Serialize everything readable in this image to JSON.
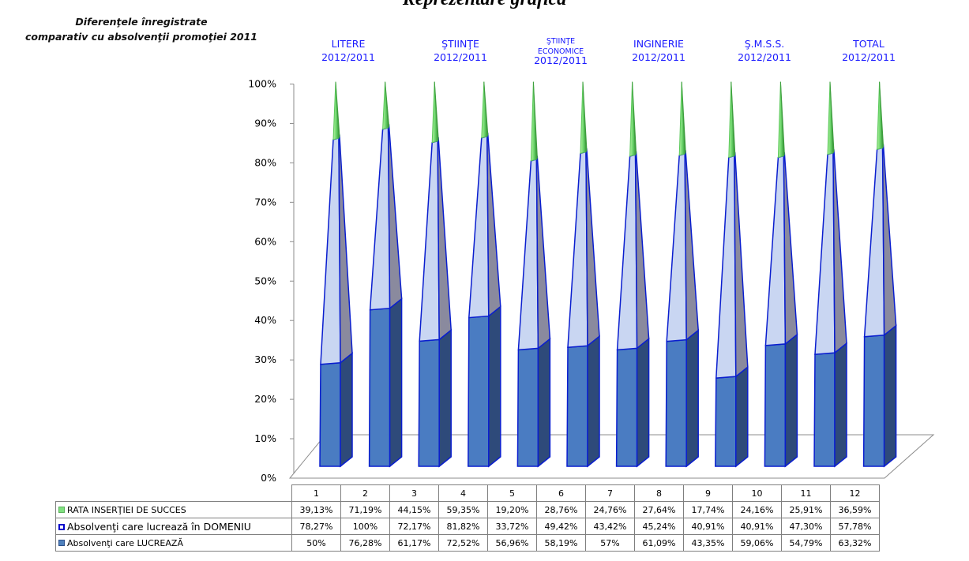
{
  "page_title": "Reprezentare grafică",
  "subtitle": [
    "Diferenţele înregistrate",
    "comparativ cu absolvenţii promoţiei 2011"
  ],
  "chart_data": {
    "type": "bar",
    "title": "Reprezentare grafică",
    "ylim": [
      0,
      100
    ],
    "y_ticks": [
      "0%",
      "10%",
      "20%",
      "30%",
      "40%",
      "50%",
      "60%",
      "70%",
      "80%",
      "90%",
      "100%"
    ],
    "categories": [
      "1",
      "2",
      "3",
      "4",
      "5",
      "6",
      "7",
      "8",
      "9",
      "10",
      "11",
      "12"
    ],
    "groups": [
      {
        "lines": [
          "LITERE",
          "2012/2011"
        ]
      },
      {
        "lines": [
          "ŞTIINŢE",
          "2012/2011"
        ]
      },
      {
        "lines": [
          "ŞTIINŢE",
          "ECONOMICE",
          "2012/2011"
        ]
      },
      {
        "lines": [
          "INGINERIE",
          "2012/2011"
        ]
      },
      {
        "lines": [
          "Ş.M.S.S.",
          "2012/2011"
        ]
      },
      {
        "lines": [
          "TOTAL",
          "2012/2011"
        ]
      }
    ],
    "series": [
      {
        "name": "RATA INSERŢIEI  DE SUCCES",
        "color": "#7fe07f",
        "values": [
          39.13,
          71.19,
          44.15,
          59.35,
          19.2,
          28.76,
          24.76,
          27.64,
          17.74,
          24.16,
          25.91,
          36.59
        ],
        "labels": [
          "39,13%",
          "71,19%",
          "44,15%",
          "59,35%",
          "19,20%",
          "28,76%",
          "24,76%",
          "27,64%",
          "17,74%",
          "24,16%",
          "25,91%",
          "36,59%"
        ]
      },
      {
        "name": "Absolvenţi care lucrează în DOMENIU",
        "color": "#0000cc",
        "values": [
          78.27,
          100,
          72.17,
          81.82,
          33.72,
          49.42,
          43.42,
          45.24,
          40.91,
          40.91,
          47.3,
          57.78
        ],
        "labels": [
          "78,27%",
          "100%",
          "72,17%",
          "81,82%",
          "33,72%",
          "49,42%",
          "43,42%",
          "45,24%",
          "40,91%",
          "40,91%",
          "47,30%",
          "57,78%"
        ]
      },
      {
        "name": "Absolvenţi care LUCREAZĂ",
        "color": "#4f81bd",
        "values": [
          50,
          76.28,
          61.17,
          72.52,
          56.96,
          58.19,
          57,
          61.09,
          43.35,
          59.06,
          54.79,
          63.32
        ],
        "labels": [
          "50%",
          "76,28%",
          "61,17%",
          "72,52%",
          "56,96%",
          "58,19%",
          "57%",
          "61,09%",
          "43,35%",
          "59,06%",
          "54,79%",
          "63,32%"
        ]
      }
    ]
  }
}
